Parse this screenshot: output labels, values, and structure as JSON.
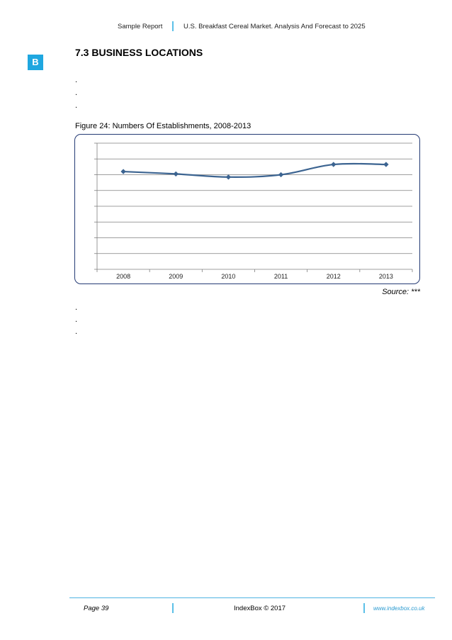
{
  "header": {
    "left": "Sample Report",
    "right": "U.S. Breakfast Cereal Market. Analysis And Forecast to 2025"
  },
  "logo": {
    "letter": "B",
    "color": "#1fa7e0"
  },
  "section": {
    "title": "7.3 BUSINESS LOCATIONS"
  },
  "body_dots_top": [
    ".",
    ".",
    "."
  ],
  "figure": {
    "caption": "Figure 24: Numbers Of Establishments, 2008-2013",
    "source": "Source: ***"
  },
  "body_dots_bottom": [
    ".",
    ".",
    "."
  ],
  "chart_data": {
    "type": "line",
    "title": "",
    "xlabel": "",
    "ylabel": "",
    "categories": [
      "2008",
      "2009",
      "2010",
      "2011",
      "2012",
      "2013"
    ],
    "series": [
      {
        "values": [
          6.2,
          6.05,
          5.85,
          6.0,
          6.65,
          6.65
        ],
        "color": "#3c6491"
      }
    ],
    "ylim": [
      0,
      8
    ],
    "grid": true,
    "y_tick_labels_visible": false
  },
  "footer": {
    "page": "Page 39",
    "copyright": "IndexBox © 2017",
    "website": "www.indexbox.co.uk"
  }
}
